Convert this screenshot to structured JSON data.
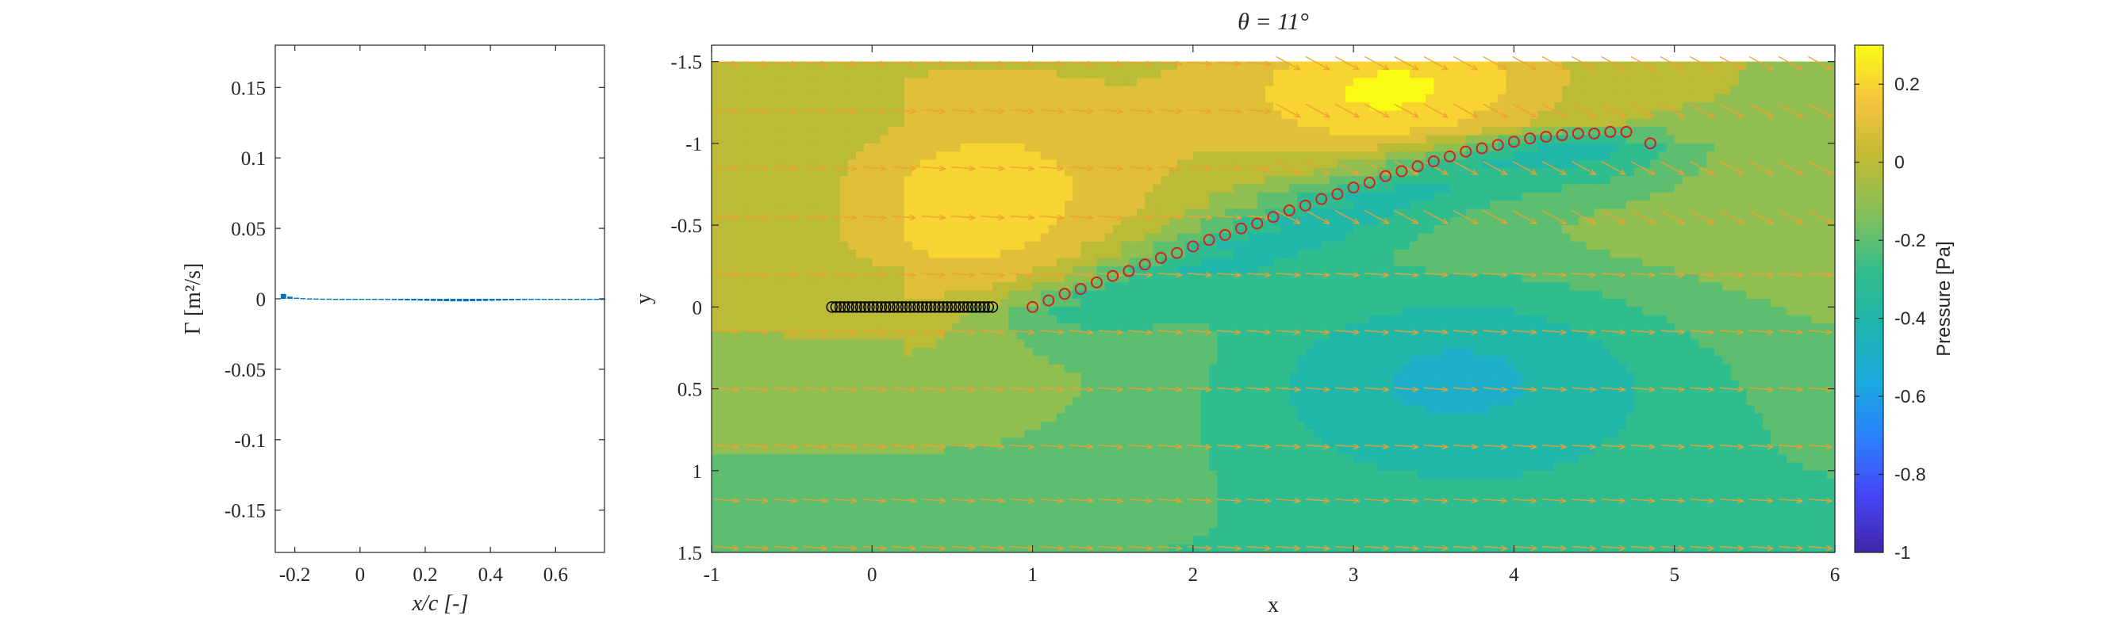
{
  "chart_data": [
    {
      "type": "bar",
      "xlabel": "x/c [-]",
      "ylabel": "Γ [m²/s]",
      "xlim": [
        -0.26,
        0.75
      ],
      "ylim": [
        -0.18,
        0.18
      ],
      "xticks": [
        -0.2,
        0,
        0.2,
        0.4,
        0.6
      ],
      "xtick_labels": [
        "-0.2",
        "0",
        "0.2",
        "0.4",
        "0.6"
      ],
      "yticks": [
        0.15,
        0.1,
        0.05,
        0,
        -0.05,
        -0.1,
        -0.15
      ],
      "ytick_labels": [
        "0.15",
        "0.1",
        "0.05",
        "0",
        "-0.05",
        "-0.1",
        "-0.15"
      ],
      "x": [
        -0.235,
        -0.215,
        -0.195,
        -0.175,
        -0.155,
        -0.135,
        -0.115,
        -0.095,
        -0.075,
        -0.055,
        -0.035,
        -0.015,
        0.005,
        0.025,
        0.045,
        0.065,
        0.085,
        0.105,
        0.125,
        0.145,
        0.165,
        0.185,
        0.205,
        0.225,
        0.245,
        0.265,
        0.285,
        0.305,
        0.325,
        0.345,
        0.365,
        0.385,
        0.405,
        0.425,
        0.445,
        0.465,
        0.485,
        0.505,
        0.525,
        0.545,
        0.565,
        0.585,
        0.605,
        0.625,
        0.645,
        0.665,
        0.685,
        0.705,
        0.725,
        0.745
      ],
      "values": [
        0.0035,
        0.0015,
        0.0008,
        0.0005,
        0.0003,
        0.0002,
        0.0001,
        0.0001,
        0.0,
        0.0,
        -0.0002,
        -0.0003,
        -0.0004,
        -0.0005,
        -0.0006,
        -0.0007,
        -0.0008,
        -0.0009,
        -0.001,
        -0.0011,
        -0.0012,
        -0.0013,
        -0.0014,
        -0.0015,
        -0.0016,
        -0.0017,
        -0.0018,
        -0.0018,
        -0.0018,
        -0.0017,
        -0.0016,
        -0.0015,
        -0.0014,
        -0.0013,
        -0.0012,
        -0.0011,
        -0.001,
        -0.0009,
        -0.0008,
        -0.0007,
        -0.0006,
        -0.0005,
        -0.0004,
        -0.0003,
        -0.0002,
        -0.0002,
        -0.0001,
        -0.0001,
        -0.0001,
        0.0
      ],
      "bar_color": "#0072bd",
      "grid": false
    },
    {
      "type": "heatmap",
      "title": "θ = 11°",
      "xlabel": "x",
      "ylabel": "y",
      "xlim": [
        -1,
        6
      ],
      "ylim": [
        -1.6,
        1.5
      ],
      "y_reversed": true,
      "xticks": [
        -1,
        0,
        1,
        2,
        3,
        4,
        5,
        6
      ],
      "xtick_labels": [
        "-1",
        "0",
        "1",
        "2",
        "3",
        "4",
        "5",
        "6"
      ],
      "yticks": [
        -1.5,
        -1,
        -0.5,
        0,
        0.5,
        1,
        1.5
      ],
      "ytick_labels": [
        "-1.5",
        "-1",
        "-0.5",
        "0",
        "0.5",
        "1",
        "1.5"
      ],
      "field_extent": {
        "x": [
          -1,
          6
        ],
        "y": [
          -1.5,
          1.5
        ]
      },
      "colorbar": {
        "label": "Pressure [Pa]",
        "range": [
          -1,
          0.3
        ],
        "ticks": [
          0.2,
          0,
          -0.2,
          -0.4,
          -0.6,
          -0.8,
          -1
        ],
        "tick_labels": [
          "0.2",
          "0",
          "-0.2",
          "-0.4",
          "-0.6",
          "-0.8",
          "-1"
        ]
      },
      "colormap": [
        "#3e26a8",
        "#4745f6",
        "#2c7ffe",
        "#1aa9df",
        "#1cb5ae",
        "#33bd89",
        "#83bf5a",
        "#c0bb33",
        "#f6c33d",
        "#f9fb15"
      ],
      "quiver_color": "#f0a030",
      "quiver_rows_y": [
        -1.49,
        -1.2,
        -0.85,
        -0.55,
        -0.2,
        0.15,
        0.5,
        0.85,
        1.18,
        1.47
      ],
      "airfoil": {
        "marker": "o",
        "color": "#000000",
        "x_start": -0.25,
        "x_end": 0.75,
        "y": 0,
        "count": 40
      },
      "wake": {
        "marker": "o",
        "color": "#d62020",
        "x": [
          1.0,
          1.1,
          1.2,
          1.3,
          1.4,
          1.5,
          1.6,
          1.7,
          1.8,
          1.9,
          2.0,
          2.1,
          2.2,
          2.3,
          2.4,
          2.5,
          2.6,
          2.7,
          2.8,
          2.9,
          3.0,
          3.1,
          3.2,
          3.3,
          3.4,
          3.5,
          3.6,
          3.7,
          3.8,
          3.9,
          4.0,
          4.1,
          4.2,
          4.3,
          4.4,
          4.5,
          4.6,
          4.7,
          4.85
        ],
        "y": [
          0.0,
          -0.04,
          -0.08,
          -0.11,
          -0.15,
          -0.19,
          -0.22,
          -0.26,
          -0.3,
          -0.33,
          -0.37,
          -0.41,
          -0.44,
          -0.48,
          -0.51,
          -0.55,
          -0.59,
          -0.62,
          -0.66,
          -0.69,
          -0.73,
          -0.76,
          -0.8,
          -0.83,
          -0.86,
          -0.89,
          -0.92,
          -0.95,
          -0.97,
          -0.99,
          -1.01,
          -1.03,
          -1.04,
          -1.05,
          -1.06,
          -1.06,
          -1.07,
          -1.07,
          -1.0
        ]
      }
    }
  ]
}
